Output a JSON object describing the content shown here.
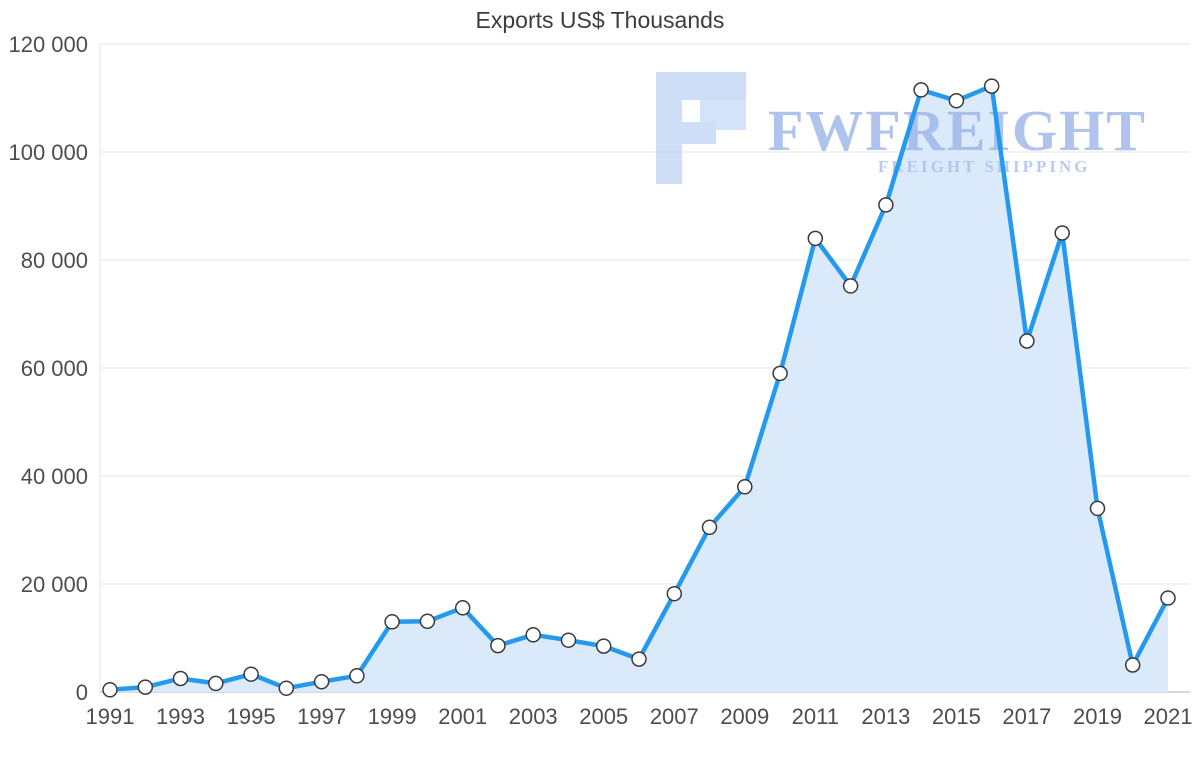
{
  "watermark": {
    "brand": "FWFREIGHT",
    "tagline": "FREIGHT SHIPPING"
  },
  "chart_data": {
    "type": "area",
    "title": "Exports US$ Thousands",
    "x": [
      1991,
      1992,
      1993,
      1994,
      1995,
      1996,
      1997,
      1998,
      1999,
      2000,
      2001,
      2002,
      2003,
      2004,
      2005,
      2006,
      2007,
      2008,
      2009,
      2010,
      2011,
      2012,
      2013,
      2014,
      2015,
      2016,
      2017,
      2018,
      2019,
      2020,
      2021
    ],
    "values": [
      400,
      900,
      2500,
      1600,
      3300,
      700,
      1900,
      3000,
      13000,
      13100,
      15600,
      8600,
      10600,
      9600,
      8500,
      6100,
      18200,
      30500,
      38000,
      59000,
      84000,
      75200,
      90200,
      111500,
      109500,
      112200,
      65000,
      85000,
      34000,
      5000,
      17400
    ],
    "ylim": [
      0,
      120000
    ],
    "ytick_step": 20000,
    "ytick_labels": [
      "0",
      "20 000",
      "40 000",
      "60 000",
      "80 000",
      "100 000",
      "120 000"
    ],
    "xticks": [
      1991,
      1993,
      1995,
      1997,
      1999,
      2001,
      2003,
      2005,
      2007,
      2009,
      2011,
      2013,
      2015,
      2017,
      2019,
      2021
    ],
    "grid": true,
    "legend": "none",
    "xlabel": "",
    "ylabel": "",
    "colors": {
      "line": "#2499f0",
      "fill": "#daeafb",
      "marker_fill": "#ffffff",
      "marker_stroke": "#3a3a3a",
      "grid": "#e4e4e4",
      "axis": "#b0b0b0",
      "label": "#4d4d4d",
      "title": "#3d3d3d",
      "watermark_text": "#9db5e8",
      "watermark_logo": "#c2d6f4"
    }
  }
}
